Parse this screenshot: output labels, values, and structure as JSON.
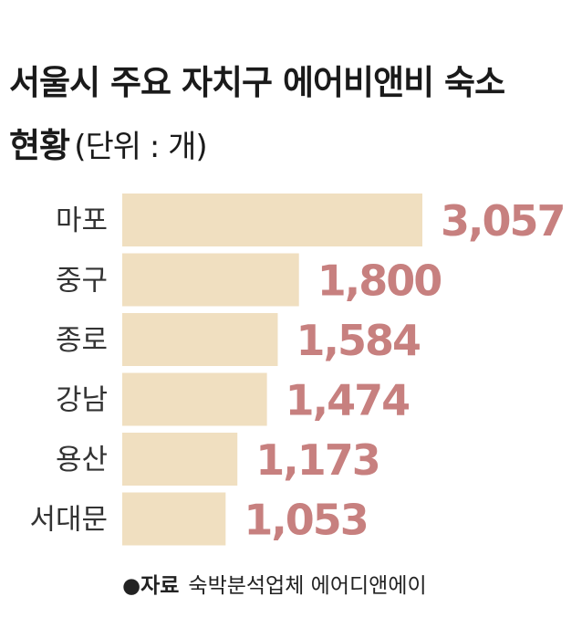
{
  "title": {
    "main_line1": "서울시 주요 자치구 에어비앤비 숙소",
    "main_line2": "현황",
    "unit": "(단위 : 개)"
  },
  "chart_data": {
    "type": "bar",
    "orientation": "horizontal",
    "categories": [
      "마포",
      "중구",
      "종로",
      "강남",
      "용산",
      "서대문"
    ],
    "values": [
      3057,
      1800,
      1584,
      1474,
      1173,
      1053
    ],
    "value_labels": [
      "3,057",
      "1,800",
      "1,584",
      "1,474",
      "1,173",
      "1,053"
    ],
    "xlim": [
      0,
      3057
    ],
    "grid": false,
    "legend": "none"
  },
  "colors": {
    "bar": "#f0dfc0",
    "value_label": "#c7807f",
    "text": "#1a1a1a"
  },
  "source": {
    "bullet": "●",
    "label": "자료",
    "text": "숙박분석업체 에어디앤에이"
  }
}
